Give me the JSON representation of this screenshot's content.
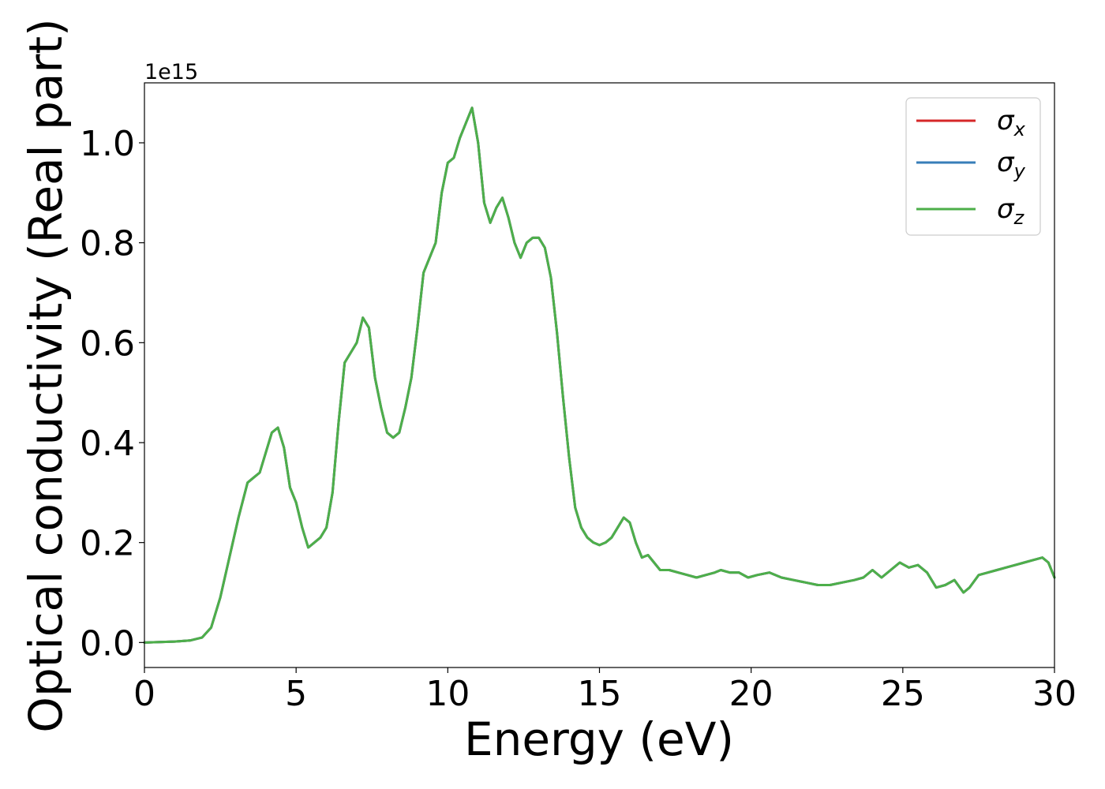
{
  "chart_data": {
    "type": "line",
    "title": "",
    "xlabel": "Energy (eV)",
    "ylabel": "Optical conductivity (Real part)",
    "y_offset_label": "1e15",
    "xlim": [
      0,
      30
    ],
    "ylim": [
      -0.05,
      1.12
    ],
    "y_scale_factor": 1000000000000000.0,
    "xticks": [
      0,
      5,
      10,
      15,
      20,
      25,
      30
    ],
    "xtick_labels": [
      "0",
      "5",
      "10",
      "15",
      "20",
      "25",
      "30"
    ],
    "yticks": [
      0.0,
      0.2,
      0.4,
      0.6,
      0.8,
      1.0
    ],
    "ytick_labels": [
      "0.0",
      "0.2",
      "0.4",
      "0.6",
      "0.8",
      "1.0"
    ],
    "grid": false,
    "legend_position": "top-right",
    "x": [
      0,
      1,
      1.5,
      1.9,
      2.2,
      2.5,
      2.8,
      3.1,
      3.4,
      3.6,
      3.8,
      4.0,
      4.2,
      4.4,
      4.6,
      4.8,
      5.0,
      5.2,
      5.4,
      5.6,
      5.8,
      6.0,
      6.2,
      6.4,
      6.6,
      6.8,
      7.0,
      7.2,
      7.4,
      7.6,
      7.8,
      8.0,
      8.2,
      8.4,
      8.6,
      8.8,
      9.0,
      9.2,
      9.4,
      9.6,
      9.8,
      10.0,
      10.2,
      10.4,
      10.6,
      10.8,
      11.0,
      11.2,
      11.4,
      11.6,
      11.8,
      12.0,
      12.2,
      12.4,
      12.6,
      12.8,
      13.0,
      13.2,
      13.4,
      13.6,
      13.8,
      14.0,
      14.2,
      14.4,
      14.6,
      14.8,
      15.0,
      15.2,
      15.4,
      15.6,
      15.8,
      16.0,
      16.2,
      16.4,
      16.6,
      16.8,
      17.0,
      17.3,
      17.6,
      17.9,
      18.2,
      18.5,
      18.8,
      19.0,
      19.3,
      19.6,
      19.9,
      20.2,
      20.6,
      21.0,
      21.4,
      21.8,
      22.2,
      22.6,
      23.0,
      23.4,
      23.7,
      24.0,
      24.3,
      24.6,
      24.9,
      25.2,
      25.5,
      25.8,
      26.1,
      26.4,
      26.7,
      27.0,
      27.2,
      27.5,
      27.8,
      28.1,
      28.4,
      28.7,
      29.0,
      29.3,
      29.6,
      29.8,
      30.0
    ],
    "series": [
      {
        "name": "σx",
        "sub": "x",
        "color": "#d62728",
        "values": [
          0.0,
          0.002,
          0.004,
          0.01,
          0.03,
          0.09,
          0.17,
          0.25,
          0.32,
          0.33,
          0.34,
          0.38,
          0.42,
          0.43,
          0.39,
          0.31,
          0.28,
          0.23,
          0.19,
          0.2,
          0.21,
          0.23,
          0.3,
          0.44,
          0.56,
          0.58,
          0.6,
          0.65,
          0.63,
          0.53,
          0.47,
          0.42,
          0.41,
          0.42,
          0.47,
          0.53,
          0.63,
          0.74,
          0.77,
          0.8,
          0.9,
          0.96,
          0.97,
          1.01,
          1.04,
          1.07,
          1.0,
          0.88,
          0.84,
          0.87,
          0.89,
          0.85,
          0.8,
          0.77,
          0.8,
          0.81,
          0.81,
          0.79,
          0.73,
          0.62,
          0.49,
          0.37,
          0.27,
          0.23,
          0.21,
          0.2,
          0.195,
          0.2,
          0.21,
          0.23,
          0.25,
          0.24,
          0.2,
          0.17,
          0.175,
          0.16,
          0.145,
          0.145,
          0.14,
          0.135,
          0.13,
          0.135,
          0.14,
          0.145,
          0.14,
          0.14,
          0.13,
          0.135,
          0.14,
          0.13,
          0.125,
          0.12,
          0.115,
          0.115,
          0.12,
          0.125,
          0.13,
          0.145,
          0.13,
          0.145,
          0.16,
          0.15,
          0.155,
          0.14,
          0.11,
          0.115,
          0.125,
          0.1,
          0.11,
          0.135,
          0.14,
          0.145,
          0.15,
          0.155,
          0.16,
          0.165,
          0.17,
          0.16,
          0.13
        ]
      },
      {
        "name": "σy",
        "sub": "y",
        "color": "#377eb8",
        "values": [
          0.0,
          0.002,
          0.004,
          0.01,
          0.03,
          0.09,
          0.17,
          0.25,
          0.32,
          0.33,
          0.34,
          0.38,
          0.42,
          0.43,
          0.39,
          0.31,
          0.28,
          0.23,
          0.19,
          0.2,
          0.21,
          0.23,
          0.3,
          0.44,
          0.56,
          0.58,
          0.6,
          0.65,
          0.63,
          0.53,
          0.47,
          0.42,
          0.41,
          0.42,
          0.47,
          0.53,
          0.63,
          0.74,
          0.77,
          0.8,
          0.9,
          0.96,
          0.97,
          1.01,
          1.04,
          1.07,
          1.0,
          0.88,
          0.84,
          0.87,
          0.89,
          0.85,
          0.8,
          0.77,
          0.8,
          0.81,
          0.81,
          0.79,
          0.73,
          0.62,
          0.49,
          0.37,
          0.27,
          0.23,
          0.21,
          0.2,
          0.195,
          0.2,
          0.21,
          0.23,
          0.25,
          0.24,
          0.2,
          0.17,
          0.175,
          0.16,
          0.145,
          0.145,
          0.14,
          0.135,
          0.13,
          0.135,
          0.14,
          0.145,
          0.14,
          0.14,
          0.13,
          0.135,
          0.14,
          0.13,
          0.125,
          0.12,
          0.115,
          0.115,
          0.12,
          0.125,
          0.13,
          0.145,
          0.13,
          0.145,
          0.16,
          0.15,
          0.155,
          0.14,
          0.11,
          0.115,
          0.125,
          0.1,
          0.11,
          0.135,
          0.14,
          0.145,
          0.15,
          0.155,
          0.16,
          0.165,
          0.17,
          0.16,
          0.13
        ]
      },
      {
        "name": "σz",
        "sub": "z",
        "color": "#4daf4a",
        "values": [
          0.0,
          0.002,
          0.004,
          0.01,
          0.03,
          0.09,
          0.17,
          0.25,
          0.32,
          0.33,
          0.34,
          0.38,
          0.42,
          0.43,
          0.39,
          0.31,
          0.28,
          0.23,
          0.19,
          0.2,
          0.21,
          0.23,
          0.3,
          0.44,
          0.56,
          0.58,
          0.6,
          0.65,
          0.63,
          0.53,
          0.47,
          0.42,
          0.41,
          0.42,
          0.47,
          0.53,
          0.63,
          0.74,
          0.77,
          0.8,
          0.9,
          0.96,
          0.97,
          1.01,
          1.04,
          1.07,
          1.0,
          0.88,
          0.84,
          0.87,
          0.89,
          0.85,
          0.8,
          0.77,
          0.8,
          0.81,
          0.81,
          0.79,
          0.73,
          0.62,
          0.49,
          0.37,
          0.27,
          0.23,
          0.21,
          0.2,
          0.195,
          0.2,
          0.21,
          0.23,
          0.25,
          0.24,
          0.2,
          0.17,
          0.175,
          0.16,
          0.145,
          0.145,
          0.14,
          0.135,
          0.13,
          0.135,
          0.14,
          0.145,
          0.14,
          0.14,
          0.13,
          0.135,
          0.14,
          0.13,
          0.125,
          0.12,
          0.115,
          0.115,
          0.12,
          0.125,
          0.13,
          0.145,
          0.13,
          0.145,
          0.16,
          0.15,
          0.155,
          0.14,
          0.11,
          0.115,
          0.125,
          0.1,
          0.11,
          0.135,
          0.14,
          0.145,
          0.15,
          0.155,
          0.16,
          0.165,
          0.17,
          0.16,
          0.13
        ]
      }
    ]
  }
}
